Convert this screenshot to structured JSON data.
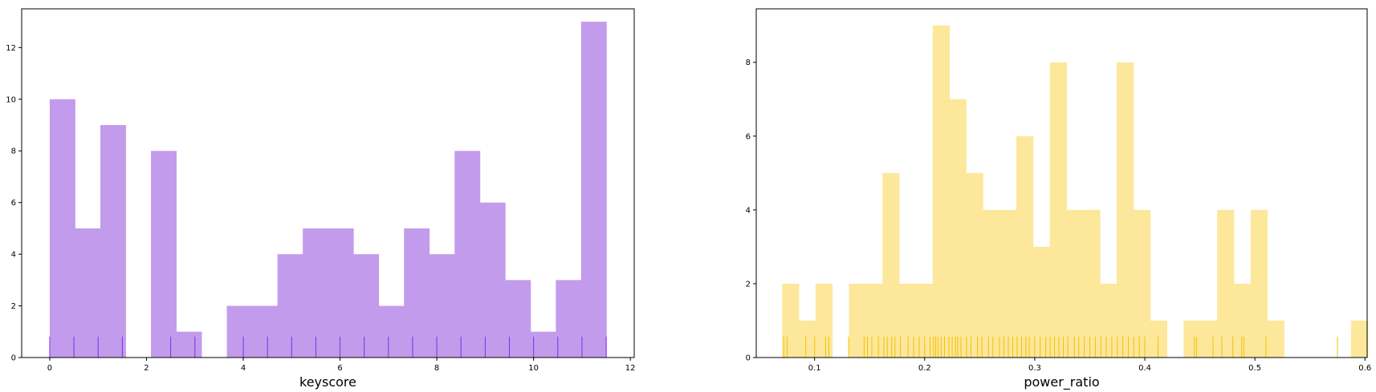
{
  "chart_data": [
    {
      "type": "histogram",
      "xlabel": "keyscore",
      "ylabel": "",
      "xlim": [
        -0.58,
        12.08
      ],
      "ylim": [
        0,
        13.5
      ],
      "xticks": [
        0,
        2,
        4,
        6,
        8,
        10,
        12
      ],
      "yticks": [
        0,
        2,
        4,
        6,
        8,
        10,
        12
      ],
      "bin_start": 0,
      "bin_width": 0.523,
      "counts": [
        10,
        5,
        9,
        0,
        8,
        1,
        0,
        2,
        2,
        4,
        5,
        5,
        4,
        2,
        5,
        4,
        8,
        6,
        3,
        1,
        3,
        13
      ],
      "rug": [
        0,
        0.5,
        1,
        1.5,
        2.5,
        3,
        4,
        4.5,
        5,
        5.5,
        6,
        6.5,
        7,
        7.5,
        8,
        8.5,
        9,
        9.5,
        10,
        10.5,
        11,
        11.5
      ],
      "color": "#c39bec",
      "rug_color": "#7b2ff0"
    },
    {
      "type": "histogram",
      "xlabel": "power_ratio",
      "ylabel": "",
      "xlim": [
        0.047,
        0.602
      ],
      "ylim": [
        0,
        9.45
      ],
      "xticks": [
        0.1,
        0.2,
        0.3,
        0.4,
        0.5,
        0.6
      ],
      "yticks": [
        0,
        2,
        4,
        6,
        8
      ],
      "bin_start": 0.0705,
      "bin_width": 0.0152,
      "counts": [
        2,
        1,
        2,
        0,
        2,
        2,
        5,
        2,
        2,
        9,
        7,
        5,
        4,
        4,
        6,
        3,
        8,
        4,
        4,
        2,
        8,
        4,
        1,
        0,
        1,
        1,
        4,
        2,
        4,
        1,
        0,
        0,
        0,
        0,
        1
      ],
      "rug": [
        0.072,
        0.075,
        0.092,
        0.1,
        0.11,
        0.113,
        0.131,
        0.145,
        0.148,
        0.152,
        0.158,
        0.163,
        0.166,
        0.17,
        0.173,
        0.178,
        0.185,
        0.19,
        0.195,
        0.2,
        0.205,
        0.208,
        0.21,
        0.212,
        0.215,
        0.218,
        0.222,
        0.225,
        0.228,
        0.23,
        0.233,
        0.238,
        0.242,
        0.248,
        0.252,
        0.258,
        0.262,
        0.268,
        0.272,
        0.276,
        0.28,
        0.284,
        0.288,
        0.292,
        0.295,
        0.3,
        0.305,
        0.31,
        0.314,
        0.318,
        0.322,
        0.326,
        0.33,
        0.336,
        0.34,
        0.345,
        0.35,
        0.355,
        0.36,
        0.365,
        0.37,
        0.375,
        0.38,
        0.385,
        0.39,
        0.395,
        0.4,
        0.412,
        0.445,
        0.447,
        0.462,
        0.47,
        0.48,
        0.488,
        0.49,
        0.51,
        0.575
      ],
      "color": "#fde79b",
      "rug_color": "#f2c200"
    }
  ]
}
